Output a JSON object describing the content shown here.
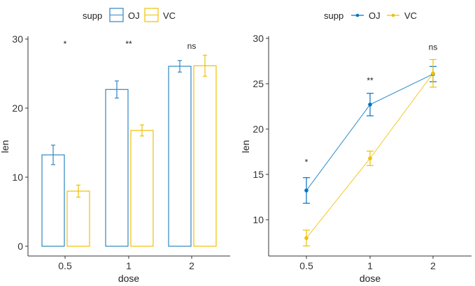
{
  "chart_data": [
    {
      "type": "bar",
      "title": "",
      "xlabel": "dose",
      "ylabel": "len",
      "categories": [
        "0.5",
        "1",
        "2"
      ],
      "ylim": [
        0,
        30
      ],
      "yticks": [
        0,
        10,
        20,
        30
      ],
      "grid": false,
      "legend": {
        "title": "supp",
        "position": "top",
        "entries": [
          "OJ",
          "VC"
        ]
      },
      "series": [
        {
          "name": "OJ",
          "color": "#2E86C1",
          "values": [
            13.23,
            22.7,
            26.06
          ],
          "se": [
            1.41,
            1.24,
            0.84
          ]
        },
        {
          "name": "VC",
          "color": "#EFC000",
          "values": [
            7.98,
            16.77,
            26.14
          ],
          "se": [
            0.87,
            0.8,
            1.52
          ]
        }
      ],
      "annotations": [
        {
          "x": "0.5",
          "label": "*",
          "y": 29.5
        },
        {
          "x": "1",
          "label": "**",
          "y": 29.5
        },
        {
          "x": "2",
          "label": "ns",
          "y": 29.2
        }
      ]
    },
    {
      "type": "line",
      "title": "",
      "xlabel": "dose",
      "ylabel": "len",
      "categories": [
        "0.5",
        "1",
        "2"
      ],
      "ylim": [
        6.3,
        30.3
      ],
      "yticks": [
        10,
        15,
        20,
        25,
        30
      ],
      "grid": false,
      "legend": {
        "title": "supp",
        "position": "top",
        "entries": [
          "OJ",
          "VC"
        ]
      },
      "series": [
        {
          "name": "OJ",
          "color": "#0073C2",
          "values": [
            13.23,
            22.7,
            26.06
          ],
          "se": [
            1.41,
            1.24,
            0.84
          ]
        },
        {
          "name": "VC",
          "color": "#EFC000",
          "values": [
            7.98,
            16.77,
            26.14
          ],
          "se": [
            0.87,
            0.8,
            1.52
          ]
        }
      ],
      "annotations": [
        {
          "x": "0.5",
          "label": "*",
          "y": 16.5
        },
        {
          "x": "1",
          "label": "**",
          "y": 25.5
        },
        {
          "x": "2",
          "label": "ns",
          "y": 29.2
        }
      ]
    }
  ]
}
